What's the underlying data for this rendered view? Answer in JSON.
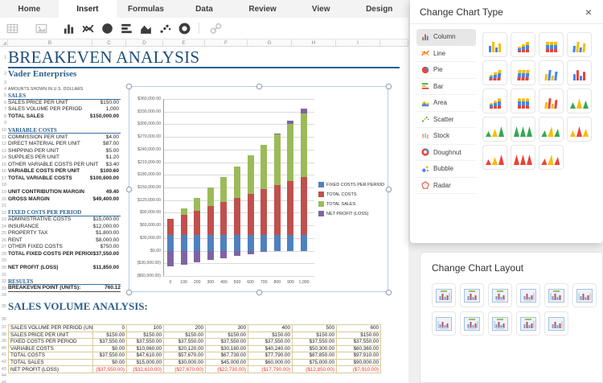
{
  "tabs": {
    "items": [
      {
        "label": "Home",
        "active": false
      },
      {
        "label": "Insert",
        "active": true
      },
      {
        "label": "Formulas",
        "active": false
      },
      {
        "label": "Data",
        "active": false
      },
      {
        "label": "Review",
        "active": false
      },
      {
        "label": "View",
        "active": false
      },
      {
        "label": "Design",
        "active": false
      }
    ]
  },
  "toolbar": {
    "icons": [
      {
        "name": "table",
        "enabled": false
      },
      {
        "name": "picture",
        "enabled": false
      },
      {
        "name": "column-chart",
        "enabled": true
      },
      {
        "name": "line-chart",
        "enabled": true
      },
      {
        "name": "pie-chart",
        "enabled": true
      },
      {
        "name": "bar-chart",
        "enabled": true
      },
      {
        "name": "area-chart",
        "enabled": true
      },
      {
        "name": "scatter-chart",
        "enabled": true
      },
      {
        "name": "doughnut-chart",
        "enabled": true
      },
      {
        "name": "hyperlink",
        "enabled": false
      }
    ]
  },
  "columns": {
    "headers": [
      "B",
      "C",
      "D",
      "E",
      "F",
      "G",
      "H",
      "I"
    ]
  },
  "sheet": {
    "row_count": 45
  },
  "statement": {
    "title": "BREAKEVEN ANALYSIS",
    "company": "Vader Enterprises",
    "note": "AMOUNTS SHOWN IN U.S. DOLLARS",
    "analysis_title": "SALES VOLUME ANALYSIS:",
    "rows": [
      {
        "n": 5,
        "type": "section",
        "label": "SALES",
        "value": ""
      },
      {
        "n": 6,
        "type": "item",
        "label": "SALES PRICE PER UNIT",
        "value": "$150.00"
      },
      {
        "n": 7,
        "type": "item",
        "label": "SALES VOLUME PER PERIOD",
        "value": "1,000"
      },
      {
        "n": 8,
        "type": "total",
        "label": "TOTAL SALES",
        "value": "$150,000.00"
      },
      {
        "n": 10,
        "type": "section",
        "label": "VARIABLE COSTS",
        "value": ""
      },
      {
        "n": 11,
        "type": "item",
        "label": "COMMISSION PER UNIT",
        "value": "$4.00"
      },
      {
        "n": 12,
        "type": "item",
        "label": "DIRECT MATERIAL PER UNIT",
        "value": "$87.00"
      },
      {
        "n": 13,
        "type": "item",
        "label": "SHIPPING PER UNIT",
        "value": "$5.00"
      },
      {
        "n": 14,
        "type": "item",
        "label": "SUPPLIES PER UNIT",
        "value": "$1.20"
      },
      {
        "n": 15,
        "type": "item",
        "label": "OTHER VARIABLE COSTS PER UNIT",
        "value": "$3.40"
      },
      {
        "n": 16,
        "type": "total",
        "label": "VARIABLE COSTS PER UNIT",
        "value": "$100.60"
      },
      {
        "n": 17,
        "type": "total",
        "label": "TOTAL VARIABLE COSTS",
        "value": "$100,600.00"
      },
      {
        "n": 19,
        "type": "total",
        "label": "UNIT CONTRIBUTION MARGIN",
        "value": "49.40"
      },
      {
        "n": 20,
        "type": "total",
        "label": "GROSS MARGIN",
        "value": "$49,400.00"
      },
      {
        "n": 22,
        "type": "section",
        "label": "FIXED COSTS PER PERIOD",
        "value": ""
      },
      {
        "n": 23,
        "type": "item",
        "label": "ADMINISTRATIVE COSTS",
        "value": "$15,000.00"
      },
      {
        "n": 24,
        "type": "item",
        "label": "INSURANCE",
        "value": "$12,000.00"
      },
      {
        "n": 25,
        "type": "item",
        "label": "PROPERTY TAX",
        "value": "$1,800.00"
      },
      {
        "n": 26,
        "type": "item",
        "label": "RENT",
        "value": "$8,000.00"
      },
      {
        "n": 27,
        "type": "item",
        "label": "OTHER FIXED COSTS",
        "value": "$750.00"
      },
      {
        "n": 28,
        "type": "total",
        "label": "TOTAL FIXED COSTS PER PERIOD",
        "value": "$37,550.00"
      },
      {
        "n": 30,
        "type": "total",
        "label": "NET PROFIT (LOSS)",
        "value": "$11,850.00"
      },
      {
        "n": 32,
        "type": "section",
        "label": "RESULTS",
        "value": ""
      },
      {
        "n": 33,
        "type": "result",
        "label": "BREAKEVEN POINT (UNITS):",
        "value": "760.12"
      }
    ]
  },
  "volume_table": {
    "rows": [
      {
        "label": "SALES VOLUME PER PERIOD (UNITS)",
        "negative": false,
        "values": [
          "0",
          "100",
          "200",
          "300",
          "400",
          "500",
          "600"
        ]
      },
      {
        "label": "SALES PRICE PER UNIT",
        "negative": false,
        "values": [
          "$150.00",
          "$150.00",
          "$150.00",
          "$150.00",
          "$150.00",
          "$150.00",
          "$150.00"
        ]
      },
      {
        "label": "FIXED COSTS PER PERIOD",
        "negative": false,
        "values": [
          "$37,550.00",
          "$37,550.00",
          "$37,550.00",
          "$37,550.00",
          "$37,550.00",
          "$37,550.00",
          "$37,550.00"
        ]
      },
      {
        "label": "VARIABLE COSTS",
        "negative": false,
        "values": [
          "$0.00",
          "$10,060.00",
          "$20,120.00",
          "$30,180.00",
          "$40,240.00",
          "$50,300.00",
          "$60,360.00"
        ]
      },
      {
        "label": "TOTAL COSTS",
        "negative": false,
        "values": [
          "$37,550.00",
          "$47,610.00",
          "$57,670.00",
          "$67,730.00",
          "$77,790.00",
          "$87,850.00",
          "$97,910.00"
        ]
      },
      {
        "label": "TOTAL SALES",
        "negative": false,
        "values": [
          "$0.00",
          "$15,000.00",
          "$30,000.00",
          "$45,000.00",
          "$60,000.00",
          "$75,000.00",
          "$90,000.00"
        ]
      },
      {
        "label": "NET PROFIT (LOSS)",
        "negative": true,
        "values": [
          "($37,550.00)",
          "($32,610.00)",
          "($27,670.00)",
          "($22,730.00)",
          "($17,790.00)",
          "($12,850.00)",
          "($7,910.00)"
        ]
      }
    ]
  },
  "chart_data": {
    "type": "bar",
    "stacked": true,
    "categories": [
      "0",
      "100",
      "200",
      "300",
      "400",
      "500",
      "600",
      "700",
      "800",
      "900",
      "1,000"
    ],
    "series": [
      {
        "name": "FIXED COSTS PER PERIOD",
        "color": "#4f81bd",
        "values": [
          37550,
          37550,
          37550,
          37550,
          37550,
          37550,
          37550,
          37550,
          37550,
          37550,
          37550
        ]
      },
      {
        "name": "TOTAL COSTS",
        "color": "#c0504d",
        "values": [
          37550,
          47610,
          57670,
          67730,
          77790,
          87850,
          97910,
          107970,
          118030,
          128090,
          138150
        ]
      },
      {
        "name": "TOTAL SALES",
        "color": "#9bbb59",
        "values": [
          0,
          15000,
          30000,
          45000,
          60000,
          75000,
          90000,
          105000,
          120000,
          135000,
          150000
        ]
      },
      {
        "name": "NET PROFIT (LOSS)",
        "color": "#8064a2",
        "values": [
          -37550,
          -32610,
          -27670,
          -22730,
          -17790,
          -12850,
          -7910,
          -2970,
          1970,
          6910,
          11850
        ]
      }
    ],
    "ylim": [
      -60000,
      360000
    ],
    "ytick_step": 30000,
    "grid": true,
    "legend_position": "right",
    "title": "",
    "xlabel": "",
    "ylabel": ""
  },
  "chart_type_dialog": {
    "title": "Change Chart Type",
    "close_icon": "×",
    "categories": [
      {
        "label": "Column",
        "icon": "column-chart",
        "selected": true
      },
      {
        "label": "Line",
        "icon": "line-chart",
        "selected": false
      },
      {
        "label": "Pie",
        "icon": "pie-chart",
        "selected": false
      },
      {
        "label": "Bar",
        "icon": "bar-chart",
        "selected": false
      },
      {
        "label": "Area",
        "icon": "area-chart",
        "selected": false
      },
      {
        "label": "Scatter",
        "icon": "scatter-chart",
        "selected": false
      },
      {
        "label": "Stock",
        "icon": "stock",
        "selected": false
      },
      {
        "label": "Doughnut",
        "icon": "doughnut-chart",
        "selected": false
      },
      {
        "label": "Bubble",
        "icon": "bubble",
        "selected": false
      },
      {
        "label": "Radar",
        "icon": "radar",
        "selected": false
      }
    ],
    "thumbnails": [
      {
        "shape": "bar",
        "variant": "clustered",
        "d3": false,
        "colors": [
          "#4285f4",
          "#fbbc04"
        ]
      },
      {
        "shape": "bar",
        "variant": "stacked",
        "d3": false,
        "colors": [
          "#ea4335",
          "#4285f4",
          "#fbbc04"
        ]
      },
      {
        "shape": "bar",
        "variant": "stacked100",
        "d3": false,
        "colors": [
          "#ea4335",
          "#4285f4",
          "#fbbc04"
        ]
      },
      {
        "shape": "bar",
        "variant": "clustered",
        "d3": true,
        "colors": [
          "#4285f4",
          "#fbbc04"
        ]
      },
      {
        "shape": "bar",
        "variant": "stacked",
        "d3": true,
        "colors": [
          "#ea4335",
          "#4285f4",
          "#fbbc04"
        ]
      },
      {
        "shape": "bar",
        "variant": "stacked100",
        "d3": true,
        "colors": [
          "#ea4335",
          "#4285f4",
          "#fbbc04"
        ]
      },
      {
        "shape": "bar",
        "variant": "clustered",
        "d3": true,
        "colors": [
          "#fbbc04",
          "#4285f4"
        ]
      },
      {
        "shape": "cyl",
        "variant": "clustered",
        "d3": false,
        "colors": [
          "#4285f4",
          "#ea4335"
        ]
      },
      {
        "shape": "cyl",
        "variant": "stacked",
        "d3": false,
        "colors": [
          "#ea4335",
          "#4285f4",
          "#fbbc04"
        ]
      },
      {
        "shape": "cyl",
        "variant": "stacked100",
        "d3": false,
        "colors": [
          "#ea4335",
          "#4285f4",
          "#fbbc04"
        ]
      },
      {
        "shape": "cyl",
        "variant": "clustered",
        "d3": true,
        "colors": [
          "#fbbc04",
          "#ea4335"
        ]
      },
      {
        "shape": "tri",
        "variant": "clustered",
        "d3": false,
        "colors": [
          "#34a853",
          "#fbbc04"
        ]
      },
      {
        "shape": "tri",
        "variant": "stacked",
        "d3": false,
        "colors": [
          "#34a853",
          "#fbbc04"
        ]
      },
      {
        "shape": "tri",
        "variant": "stacked100",
        "d3": false,
        "colors": [
          "#34a853",
          "#34a853"
        ]
      },
      {
        "shape": "tri",
        "variant": "clustered",
        "d3": true,
        "colors": [
          "#34a853",
          "#fbbc04"
        ]
      },
      {
        "shape": "tri",
        "variant": "clustered",
        "d3": false,
        "colors": [
          "#fbbc04",
          "#ea4335"
        ]
      },
      {
        "shape": "tri",
        "variant": "stacked",
        "d3": false,
        "colors": [
          "#ea4335",
          "#fbbc04"
        ]
      },
      {
        "shape": "tri",
        "variant": "stacked100",
        "d3": false,
        "colors": [
          "#ea4335",
          "#ea4335"
        ]
      },
      {
        "shape": "tri",
        "variant": "clustered",
        "d3": true,
        "colors": [
          "#ea4335",
          "#fbbc04"
        ]
      }
    ]
  },
  "chart_layout_panel": {
    "title": "Change Chart Layout",
    "thumbnails": [
      {
        "t": true,
        "r": true,
        "l": false,
        "b": false
      },
      {
        "t": true,
        "r": false,
        "l": false,
        "b": false
      },
      {
        "t": true,
        "r": false,
        "l": false,
        "b": true
      },
      {
        "t": false,
        "r": true,
        "l": false,
        "b": true
      },
      {
        "t": true,
        "r": false,
        "l": true,
        "b": false
      },
      {
        "t": false,
        "r": true,
        "l": true,
        "b": false
      },
      {
        "t": false,
        "r": false,
        "l": true,
        "b": true
      },
      {
        "t": true,
        "r": true,
        "l": false,
        "b": true
      },
      {
        "t": true,
        "r": false,
        "l": true,
        "b": true
      },
      {
        "t": true,
        "r": true,
        "l": false,
        "b": false
      },
      {
        "t": false,
        "r": true,
        "l": false,
        "b": false
      }
    ]
  }
}
